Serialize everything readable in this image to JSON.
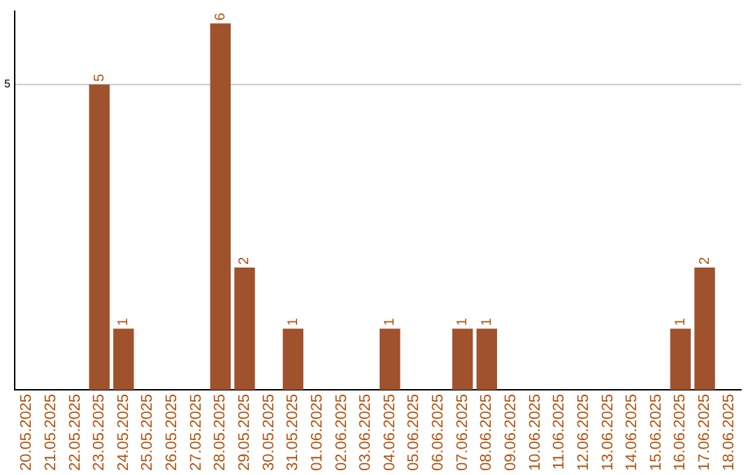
{
  "chart_data": {
    "type": "bar",
    "categories": [
      "20.05.2025",
      "21.05.2025",
      "22.05.2025",
      "23.05.2025",
      "24.05.2025",
      "25.05.2025",
      "26.05.2025",
      "27.05.2025",
      "28.05.2025",
      "29.05.2025",
      "30.05.2025",
      "31.05.2025",
      "01.06.2025",
      "02.06.2025",
      "03.06.2025",
      "04.06.2025",
      "05.06.2025",
      "06.06.2025",
      "07.06.2025",
      "08.06.2025",
      "09.06.2025",
      "10.06.2025",
      "11.06.2025",
      "12.06.2025",
      "13.06.2025",
      "14.06.2025",
      "15.06.2025",
      "16.06.2025",
      "17.06.2025",
      "18.06.2025"
    ],
    "values": [
      0,
      0,
      0,
      5,
      1,
      0,
      0,
      0,
      6,
      2,
      0,
      1,
      0,
      0,
      0,
      1,
      0,
      0,
      1,
      1,
      0,
      0,
      0,
      0,
      0,
      0,
      0,
      1,
      2,
      0
    ],
    "value_labels": [
      null,
      null,
      null,
      "5",
      "1",
      null,
      null,
      null,
      "6",
      "2",
      null,
      "1",
      null,
      null,
      null,
      "1",
      null,
      null,
      "1",
      "1",
      null,
      null,
      null,
      null,
      null,
      null,
      null,
      "1",
      "2",
      null
    ],
    "color": "#a0522d",
    "ylim": [
      0,
      6.2
    ],
    "yticks": [
      5
    ],
    "grid": "y",
    "legend": false
  }
}
